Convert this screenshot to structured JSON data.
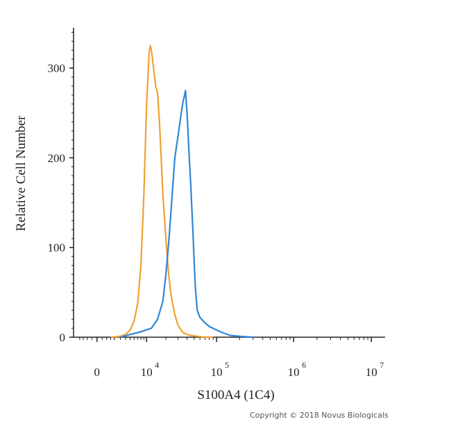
{
  "chart_data": {
    "type": "line",
    "xlabel": "S100A4 (1C4)",
    "ylabel": "Relative Cell Number",
    "x_scale": "biexponential",
    "xlim": [
      -3000,
      15000000
    ],
    "ylim": [
      0,
      345
    ],
    "y_ticks": [
      {
        "value": 0,
        "label": "0"
      },
      {
        "value": 100,
        "label": "100"
      },
      {
        "value": 200,
        "label": "200"
      },
      {
        "value": 300,
        "label": "300"
      }
    ],
    "x_ticks": [
      {
        "value": 0,
        "base": "0",
        "exp": ""
      },
      {
        "value": 10000,
        "base": "10",
        "exp": "4"
      },
      {
        "value": 100000,
        "base": "10",
        "exp": "5"
      },
      {
        "value": 1000000,
        "base": "10",
        "exp": "6"
      },
      {
        "value": 10000000,
        "base": "10",
        "exp": "7"
      }
    ],
    "grid": false,
    "series": [
      {
        "color": "#f0a030",
        "x": [
          1500,
          3000,
          4000,
          5000,
          6000,
          7000,
          8000,
          9000,
          10000,
          11000,
          11500,
          12000,
          13000,
          14000,
          15000,
          16000,
          17000,
          18000,
          20000,
          22000,
          24000,
          27000,
          30000,
          35000,
          40000,
          45000,
          55000,
          70000,
          90000
        ],
        "y": [
          0,
          1,
          3,
          8,
          18,
          38,
          80,
          160,
          260,
          317,
          325,
          320,
          300,
          280,
          272,
          240,
          200,
          160,
          110,
          70,
          45,
          25,
          13,
          5,
          3,
          2,
          1,
          0,
          0
        ]
      },
      {
        "color": "#2e86d6",
        "x": [
          3000,
          5000,
          8000,
          12000,
          15000,
          18000,
          20000,
          22000,
          24000,
          25000,
          27000,
          30000,
          33000,
          35000,
          37000,
          38000,
          40000,
          42000,
          45000,
          48000,
          50000,
          52000,
          55000,
          60000,
          70000,
          80000,
          100000,
          120000,
          150000,
          200000,
          300000
        ],
        "y": [
          0,
          3,
          6,
          10,
          20,
          40,
          70,
          105,
          145,
          165,
          200,
          225,
          248,
          262,
          270,
          275,
          250,
          215,
          170,
          120,
          85,
          55,
          30,
          22,
          16,
          12,
          8,
          5,
          2,
          1,
          0
        ]
      }
    ]
  },
  "copyright": "Copyright © 2018 Novus Biologicals"
}
